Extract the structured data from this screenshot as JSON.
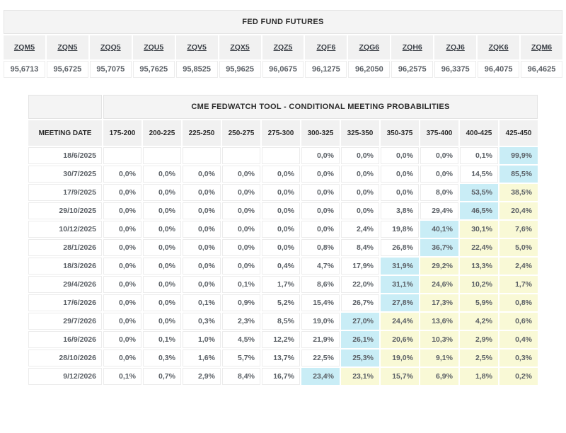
{
  "colors": {
    "cyan_highlight": "#c9edf6",
    "yellow_highlight": "#f9f9d6",
    "header_bg": "#f1f1f1",
    "title_bg": "#f4f4f4"
  },
  "futures_table": {
    "title": "FED FUND FUTURES",
    "tickers": [
      "ZQM5",
      "ZQN5",
      "ZQQ5",
      "ZQU5",
      "ZQV5",
      "ZQX5",
      "ZQZ5",
      "ZQF6",
      "ZQG6",
      "ZQH6",
      "ZQJ6",
      "ZQK6",
      "ZQM6"
    ],
    "values": [
      "95,6713",
      "95,6725",
      "95,7075",
      "95,7625",
      "95,8525",
      "95,9625",
      "96,0675",
      "96,1275",
      "96,2050",
      "96,2575",
      "96,3375",
      "96,4075",
      "96,4625"
    ]
  },
  "fedwatch_table": {
    "title": "CME FEDWATCH TOOL - CONDITIONAL MEETING PROBABILITIES",
    "date_header": "MEETING DATE",
    "rate_ranges": [
      "175-200",
      "200-225",
      "225-250",
      "250-275",
      "275-300",
      "300-325",
      "325-350",
      "350-375",
      "375-400",
      "400-425",
      "425-450"
    ],
    "rows": [
      {
        "date": "18/6/2025",
        "cells": [
          {
            "v": "",
            "h": ""
          },
          {
            "v": "",
            "h": ""
          },
          {
            "v": "",
            "h": ""
          },
          {
            "v": "",
            "h": ""
          },
          {
            "v": "",
            "h": ""
          },
          {
            "v": "0,0%",
            "h": ""
          },
          {
            "v": "0,0%",
            "h": ""
          },
          {
            "v": "0,0%",
            "h": ""
          },
          {
            "v": "0,0%",
            "h": ""
          },
          {
            "v": "0,1%",
            "h": ""
          },
          {
            "v": "99,9%",
            "h": "cyan"
          }
        ]
      },
      {
        "date": "30/7/2025",
        "cells": [
          {
            "v": "0,0%",
            "h": ""
          },
          {
            "v": "0,0%",
            "h": ""
          },
          {
            "v": "0,0%",
            "h": ""
          },
          {
            "v": "0,0%",
            "h": ""
          },
          {
            "v": "0,0%",
            "h": ""
          },
          {
            "v": "0,0%",
            "h": ""
          },
          {
            "v": "0,0%",
            "h": ""
          },
          {
            "v": "0,0%",
            "h": ""
          },
          {
            "v": "0,0%",
            "h": ""
          },
          {
            "v": "14,5%",
            "h": ""
          },
          {
            "v": "85,5%",
            "h": "cyan"
          }
        ]
      },
      {
        "date": "17/9/2025",
        "cells": [
          {
            "v": "0,0%",
            "h": ""
          },
          {
            "v": "0,0%",
            "h": ""
          },
          {
            "v": "0,0%",
            "h": ""
          },
          {
            "v": "0,0%",
            "h": ""
          },
          {
            "v": "0,0%",
            "h": ""
          },
          {
            "v": "0,0%",
            "h": ""
          },
          {
            "v": "0,0%",
            "h": ""
          },
          {
            "v": "0,0%",
            "h": ""
          },
          {
            "v": "8,0%",
            "h": ""
          },
          {
            "v": "53,5%",
            "h": "cyan"
          },
          {
            "v": "38,5%",
            "h": "yellow"
          }
        ]
      },
      {
        "date": "29/10/2025",
        "cells": [
          {
            "v": "0,0%",
            "h": ""
          },
          {
            "v": "0,0%",
            "h": ""
          },
          {
            "v": "0,0%",
            "h": ""
          },
          {
            "v": "0,0%",
            "h": ""
          },
          {
            "v": "0,0%",
            "h": ""
          },
          {
            "v": "0,0%",
            "h": ""
          },
          {
            "v": "0,0%",
            "h": ""
          },
          {
            "v": "3,8%",
            "h": ""
          },
          {
            "v": "29,4%",
            "h": ""
          },
          {
            "v": "46,5%",
            "h": "cyan"
          },
          {
            "v": "20,4%",
            "h": "yellow"
          }
        ]
      },
      {
        "date": "10/12/2025",
        "cells": [
          {
            "v": "0,0%",
            "h": ""
          },
          {
            "v": "0,0%",
            "h": ""
          },
          {
            "v": "0,0%",
            "h": ""
          },
          {
            "v": "0,0%",
            "h": ""
          },
          {
            "v": "0,0%",
            "h": ""
          },
          {
            "v": "0,0%",
            "h": ""
          },
          {
            "v": "2,4%",
            "h": ""
          },
          {
            "v": "19,8%",
            "h": ""
          },
          {
            "v": "40,1%",
            "h": "cyan"
          },
          {
            "v": "30,1%",
            "h": "yellow"
          },
          {
            "v": "7,6%",
            "h": "yellow"
          }
        ]
      },
      {
        "date": "28/1/2026",
        "cells": [
          {
            "v": "0,0%",
            "h": ""
          },
          {
            "v": "0,0%",
            "h": ""
          },
          {
            "v": "0,0%",
            "h": ""
          },
          {
            "v": "0,0%",
            "h": ""
          },
          {
            "v": "0,0%",
            "h": ""
          },
          {
            "v": "0,8%",
            "h": ""
          },
          {
            "v": "8,4%",
            "h": ""
          },
          {
            "v": "26,8%",
            "h": ""
          },
          {
            "v": "36,7%",
            "h": "cyan"
          },
          {
            "v": "22,4%",
            "h": "yellow"
          },
          {
            "v": "5,0%",
            "h": "yellow"
          }
        ]
      },
      {
        "date": "18/3/2026",
        "cells": [
          {
            "v": "0,0%",
            "h": ""
          },
          {
            "v": "0,0%",
            "h": ""
          },
          {
            "v": "0,0%",
            "h": ""
          },
          {
            "v": "0,0%",
            "h": ""
          },
          {
            "v": "0,4%",
            "h": ""
          },
          {
            "v": "4,7%",
            "h": ""
          },
          {
            "v": "17,9%",
            "h": ""
          },
          {
            "v": "31,9%",
            "h": "cyan"
          },
          {
            "v": "29,2%",
            "h": "yellow"
          },
          {
            "v": "13,3%",
            "h": "yellow"
          },
          {
            "v": "2,4%",
            "h": "yellow"
          }
        ]
      },
      {
        "date": "29/4/2026",
        "cells": [
          {
            "v": "0,0%",
            "h": ""
          },
          {
            "v": "0,0%",
            "h": ""
          },
          {
            "v": "0,0%",
            "h": ""
          },
          {
            "v": "0,1%",
            "h": ""
          },
          {
            "v": "1,7%",
            "h": ""
          },
          {
            "v": "8,6%",
            "h": ""
          },
          {
            "v": "22,0%",
            "h": ""
          },
          {
            "v": "31,1%",
            "h": "cyan"
          },
          {
            "v": "24,6%",
            "h": "yellow"
          },
          {
            "v": "10,2%",
            "h": "yellow"
          },
          {
            "v": "1,7%",
            "h": "yellow"
          }
        ]
      },
      {
        "date": "17/6/2026",
        "cells": [
          {
            "v": "0,0%",
            "h": ""
          },
          {
            "v": "0,0%",
            "h": ""
          },
          {
            "v": "0,1%",
            "h": ""
          },
          {
            "v": "0,9%",
            "h": ""
          },
          {
            "v": "5,2%",
            "h": ""
          },
          {
            "v": "15,4%",
            "h": ""
          },
          {
            "v": "26,7%",
            "h": ""
          },
          {
            "v": "27,8%",
            "h": "cyan"
          },
          {
            "v": "17,3%",
            "h": "yellow"
          },
          {
            "v": "5,9%",
            "h": "yellow"
          },
          {
            "v": "0,8%",
            "h": "yellow"
          }
        ]
      },
      {
        "date": "29/7/2026",
        "cells": [
          {
            "v": "0,0%",
            "h": ""
          },
          {
            "v": "0,0%",
            "h": ""
          },
          {
            "v": "0,3%",
            "h": ""
          },
          {
            "v": "2,3%",
            "h": ""
          },
          {
            "v": "8,5%",
            "h": ""
          },
          {
            "v": "19,0%",
            "h": ""
          },
          {
            "v": "27,0%",
            "h": "cyan"
          },
          {
            "v": "24,4%",
            "h": "yellow"
          },
          {
            "v": "13,6%",
            "h": "yellow"
          },
          {
            "v": "4,2%",
            "h": "yellow"
          },
          {
            "v": "0,6%",
            "h": "yellow"
          }
        ]
      },
      {
        "date": "16/9/2026",
        "cells": [
          {
            "v": "0,0%",
            "h": ""
          },
          {
            "v": "0,1%",
            "h": ""
          },
          {
            "v": "1,0%",
            "h": ""
          },
          {
            "v": "4,5%",
            "h": ""
          },
          {
            "v": "12,2%",
            "h": ""
          },
          {
            "v": "21,9%",
            "h": ""
          },
          {
            "v": "26,1%",
            "h": "cyan"
          },
          {
            "v": "20,6%",
            "h": "yellow"
          },
          {
            "v": "10,3%",
            "h": "yellow"
          },
          {
            "v": "2,9%",
            "h": "yellow"
          },
          {
            "v": "0,4%",
            "h": "yellow"
          }
        ]
      },
      {
        "date": "28/10/2026",
        "cells": [
          {
            "v": "0,0%",
            "h": ""
          },
          {
            "v": "0,3%",
            "h": ""
          },
          {
            "v": "1,6%",
            "h": ""
          },
          {
            "v": "5,7%",
            "h": ""
          },
          {
            "v": "13,7%",
            "h": ""
          },
          {
            "v": "22,5%",
            "h": ""
          },
          {
            "v": "25,3%",
            "h": "cyan"
          },
          {
            "v": "19,0%",
            "h": "yellow"
          },
          {
            "v": "9,1%",
            "h": "yellow"
          },
          {
            "v": "2,5%",
            "h": "yellow"
          },
          {
            "v": "0,3%",
            "h": "yellow"
          }
        ]
      },
      {
        "date": "9/12/2026",
        "cells": [
          {
            "v": "0,1%",
            "h": ""
          },
          {
            "v": "0,7%",
            "h": ""
          },
          {
            "v": "2,9%",
            "h": ""
          },
          {
            "v": "8,4%",
            "h": ""
          },
          {
            "v": "16,7%",
            "h": ""
          },
          {
            "v": "23,4%",
            "h": "cyan"
          },
          {
            "v": "23,1%",
            "h": "yellow"
          },
          {
            "v": "15,7%",
            "h": "yellow"
          },
          {
            "v": "6,9%",
            "h": "yellow"
          },
          {
            "v": "1,8%",
            "h": "yellow"
          },
          {
            "v": "0,2%",
            "h": "yellow"
          }
        ]
      }
    ]
  }
}
